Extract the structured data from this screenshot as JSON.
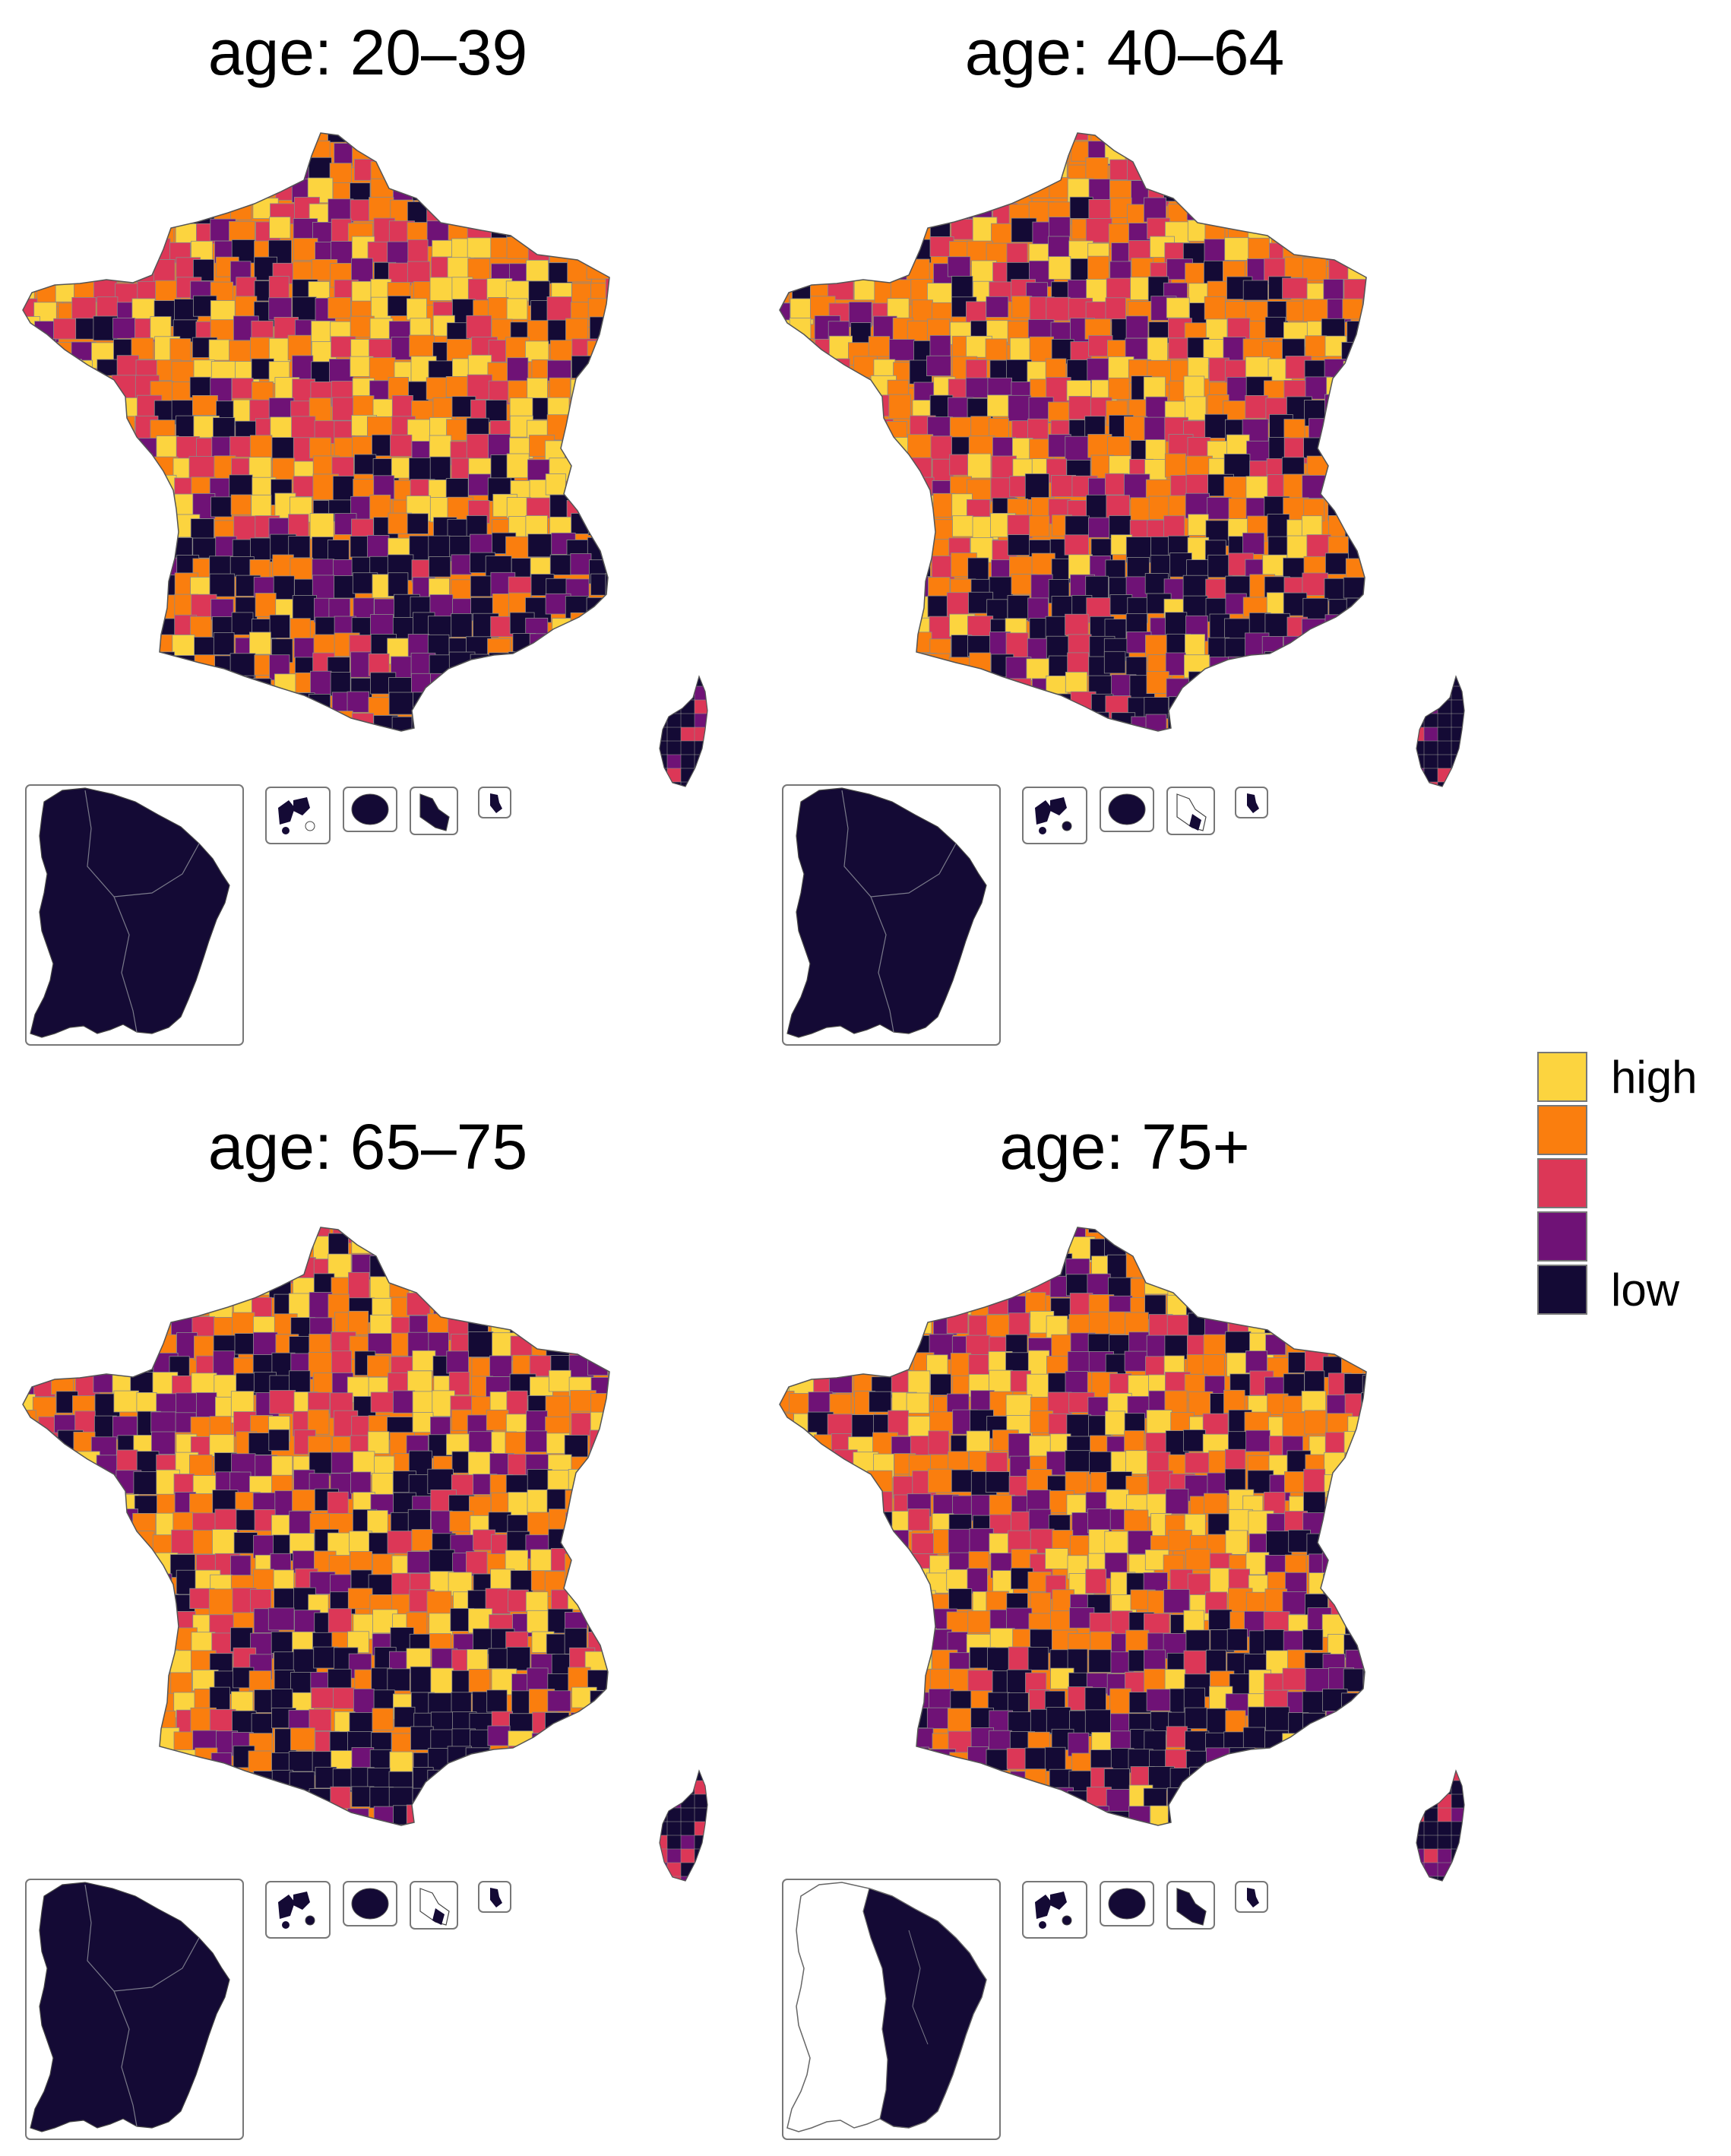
{
  "figure": {
    "panels": [
      {
        "title": "age: 20–39",
        "guiana_state": "dark",
        "mainland_mix": {
          "high": 0.22,
          "upper_mid": 0.27,
          "mid": 0.2,
          "lower_mid": 0.14,
          "low": 0.17
        },
        "south_low_share": 0.72
      },
      {
        "title": "age: 40–64",
        "guiana_state": "dark",
        "mainland_mix": {
          "high": 0.2,
          "upper_mid": 0.28,
          "mid": 0.21,
          "lower_mid": 0.15,
          "low": 0.16
        },
        "south_low_share": 0.68
      },
      {
        "title": "age: 65–75",
        "guiana_state": "dark",
        "mainland_mix": {
          "high": 0.24,
          "upper_mid": 0.25,
          "mid": 0.19,
          "lower_mid": 0.15,
          "low": 0.17
        },
        "south_low_share": 0.66
      },
      {
        "title": "age: 75+",
        "guiana_state": "partial",
        "mainland_mix": {
          "high": 0.21,
          "upper_mid": 0.24,
          "mid": 0.18,
          "lower_mid": 0.19,
          "low": 0.18
        },
        "south_low_share": 0.52
      }
    ],
    "legend": {
      "labels": [
        "high",
        "",
        "",
        "",
        "low"
      ],
      "colors": [
        "#fcd43f",
        "#fa7e0e",
        "#dc3757",
        "#6f1276",
        "#140a35"
      ]
    },
    "palette": {
      "high": "#fcd43f",
      "upper_mid": "#fa7e0e",
      "mid": "#dc3757",
      "lower_mid": "#6f1276",
      "low": "#140a35",
      "border": "#8a8a8a",
      "inset_frame": "#777777"
    }
  }
}
